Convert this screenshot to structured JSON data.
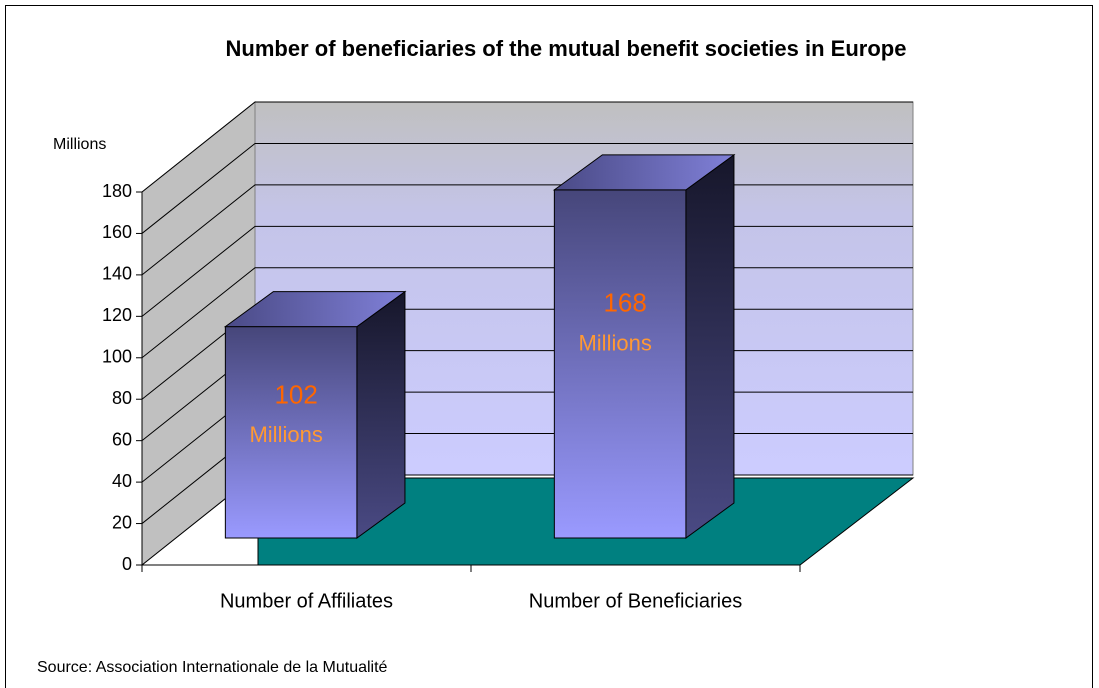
{
  "chart_data": {
    "type": "bar3d",
    "title": "Number of beneficiaries of the mutual benefit societies in Europe",
    "y_axis_label": "Millions",
    "categories": [
      "Number of Affiliates",
      "Number of Beneficiaries"
    ],
    "values": [
      102,
      168
    ],
    "data_label_unit": "Millions",
    "ylim": [
      0,
      180
    ],
    "yticks": [
      0,
      20,
      40,
      60,
      80,
      100,
      120,
      140,
      160,
      180
    ],
    "grid": true,
    "source": "Source: Association  Internationale de la Mutualité"
  }
}
